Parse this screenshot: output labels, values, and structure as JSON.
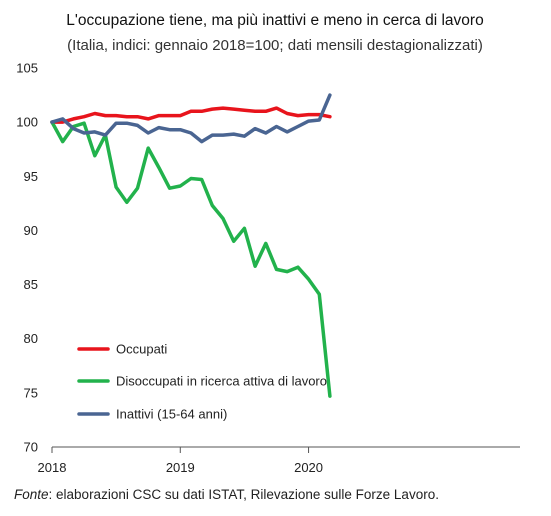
{
  "chart_data": {
    "type": "line",
    "title": "L'occupazione tiene, ma più inattivi e meno in cerca di lavoro",
    "subtitle": "(Italia, indici: gennaio 2018=100; dati mensili destagionalizzati)",
    "xlabel": "",
    "ylabel": "",
    "ylim": [
      70,
      105
    ],
    "yticks": [
      "70",
      "75",
      "80",
      "85",
      "90",
      "95",
      "100",
      "105"
    ],
    "x_tick_labels": [
      "2018",
      "2019",
      "2020"
    ],
    "x_start": "2018-01",
    "months": 27,
    "grid": false,
    "legend_position": "bottom-left",
    "series": [
      {
        "name": "Occupati",
        "color": "#e8141c",
        "values": [
          100.0,
          100.0,
          100.3,
          100.5,
          100.8,
          100.6,
          100.6,
          100.5,
          100.5,
          100.3,
          100.6,
          100.6,
          100.6,
          101.0,
          101.0,
          101.2,
          101.3,
          101.2,
          101.1,
          101.0,
          101.0,
          101.3,
          100.8,
          100.6,
          100.7,
          100.7,
          100.5
        ]
      },
      {
        "name": "Disoccupati in ricerca attiva di lavoro",
        "color": "#22b24c",
        "values": [
          100.0,
          98.2,
          99.6,
          99.9,
          96.9,
          98.8,
          94.0,
          92.6,
          93.9,
          97.6,
          95.8,
          93.9,
          94.1,
          94.8,
          94.7,
          92.3,
          91.1,
          89.0,
          90.2,
          86.7,
          88.8,
          86.4,
          86.2,
          86.6,
          85.5,
          84.1,
          74.7
        ]
      },
      {
        "name": "Inattivi (15-64 anni)",
        "color": "#4a6592",
        "values": [
          100.0,
          100.3,
          99.4,
          99.0,
          99.1,
          98.8,
          99.9,
          99.9,
          99.7,
          99.0,
          99.5,
          99.3,
          99.3,
          99.0,
          98.2,
          98.8,
          98.8,
          98.9,
          98.7,
          99.4,
          99.0,
          99.6,
          99.1,
          99.6,
          100.1,
          100.2,
          102.5
        ]
      }
    ]
  },
  "source": {
    "label": "Fonte",
    "text": ": elaborazioni CSC su dati ISTAT, Rilevazione sulle Forze Lavoro."
  }
}
